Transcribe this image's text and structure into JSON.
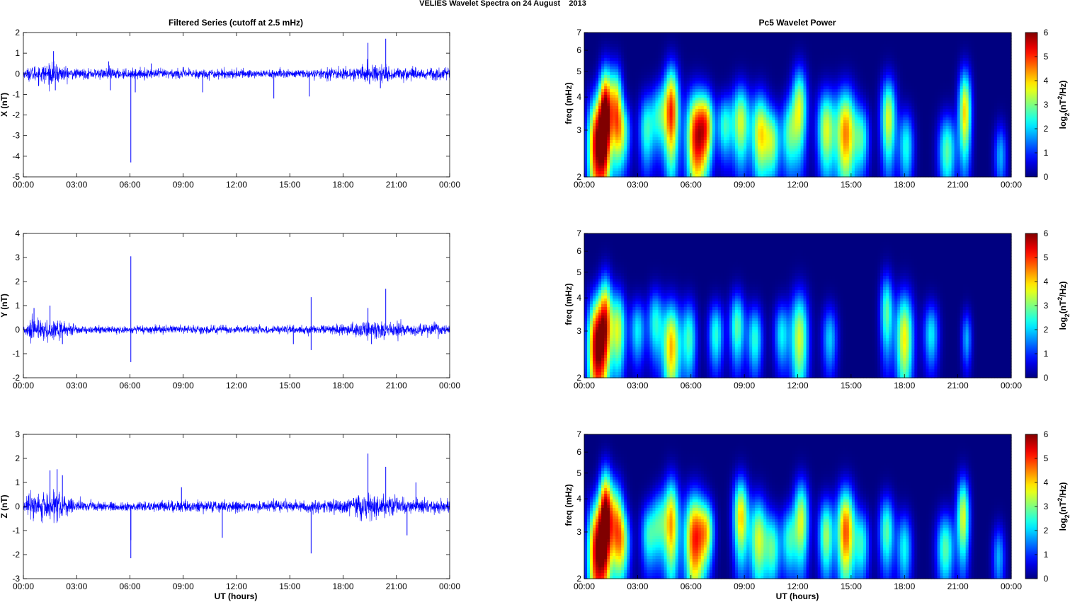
{
  "figure": {
    "title": "VELIES Wavelet Spectra on 24 August    2013",
    "left_title": "Filtered Series (cutoff at 2.5 mHz)",
    "right_title": "Pc5 Wavelet Power",
    "xlabel": "UT (hours)"
  },
  "chart_data": [
    {
      "type": "line",
      "title": "Filtered Series (cutoff at 2.5 mHz)",
      "ylabel": "X (nT)",
      "xlabel": "",
      "x_ticks": [
        "00:00",
        "03:00",
        "06:00",
        "09:00",
        "12:00",
        "15:00",
        "18:00",
        "21:00",
        "00:00"
      ],
      "xlim_hours": [
        0,
        24
      ],
      "ylim": [
        -5,
        2
      ],
      "y_ticks": [
        -5,
        -4,
        -3,
        -2,
        -1,
        0,
        1,
        2
      ],
      "noise_envelope": [
        [
          0,
          0.15
        ],
        [
          0.5,
          0.35
        ],
        [
          1.5,
          0.45
        ],
        [
          2,
          0.4
        ],
        [
          3,
          0.2
        ],
        [
          5,
          0.25
        ],
        [
          6,
          0.2
        ],
        [
          9,
          0.22
        ],
        [
          12,
          0.2
        ],
        [
          16,
          0.18
        ],
        [
          18,
          0.25
        ],
        [
          19.5,
          0.4
        ],
        [
          21,
          0.3
        ],
        [
          24,
          0.25
        ]
      ],
      "spikes": [
        [
          1.7,
          1.1
        ],
        [
          1.8,
          -0.8
        ],
        [
          4.8,
          0.6
        ],
        [
          4.9,
          -0.8
        ],
        [
          6.05,
          -4.3
        ],
        [
          6.3,
          -0.9
        ],
        [
          7.2,
          0.5
        ],
        [
          10.1,
          -0.9
        ],
        [
          14.1,
          -1.2
        ],
        [
          16.1,
          -1.1
        ],
        [
          19.4,
          1.5
        ],
        [
          20.4,
          1.7
        ],
        [
          20.1,
          -0.7
        ]
      ],
      "color": "#0000ff"
    },
    {
      "type": "line",
      "title": "",
      "ylabel": "Y (nT)",
      "xlabel": "",
      "x_ticks": [
        "00:00",
        "03:00",
        "06:00",
        "09:00",
        "12:00",
        "15:00",
        "18:00",
        "21:00",
        "00:00"
      ],
      "xlim_hours": [
        0,
        24
      ],
      "ylim": [
        -2,
        4
      ],
      "y_ticks": [
        -2,
        -1,
        0,
        1,
        2,
        3,
        4
      ],
      "noise_envelope": [
        [
          0,
          0.15
        ],
        [
          0.5,
          0.4
        ],
        [
          1.5,
          0.45
        ],
        [
          2,
          0.35
        ],
        [
          3,
          0.15
        ],
        [
          6,
          0.12
        ],
        [
          9,
          0.15
        ],
        [
          12,
          0.15
        ],
        [
          16,
          0.15
        ],
        [
          18,
          0.2
        ],
        [
          19.5,
          0.35
        ],
        [
          21,
          0.25
        ],
        [
          24,
          0.2
        ]
      ],
      "spikes": [
        [
          0.6,
          0.9
        ],
        [
          1.5,
          1.0
        ],
        [
          2.2,
          -0.6
        ],
        [
          6.05,
          3.05
        ],
        [
          6.05,
          -1.35
        ],
        [
          15.2,
          -0.6
        ],
        [
          16.2,
          1.35
        ],
        [
          16.2,
          -0.85
        ],
        [
          19.4,
          0.9
        ],
        [
          20.4,
          1.7
        ],
        [
          19.6,
          -0.6
        ]
      ],
      "color": "#0000ff"
    },
    {
      "type": "line",
      "title": "",
      "ylabel": "Z (nT)",
      "xlabel": "UT (hours)",
      "x_ticks": [
        "00:00",
        "03:00",
        "06:00",
        "09:00",
        "12:00",
        "15:00",
        "18:00",
        "21:00",
        "00:00"
      ],
      "xlim_hours": [
        0,
        24
      ],
      "ylim": [
        -3,
        3
      ],
      "y_ticks": [
        -3,
        -2,
        -1,
        0,
        1,
        2,
        3
      ],
      "noise_envelope": [
        [
          0,
          0.2
        ],
        [
          0.5,
          0.5
        ],
        [
          1.5,
          0.6
        ],
        [
          2,
          0.5
        ],
        [
          3,
          0.2
        ],
        [
          6,
          0.15
        ],
        [
          9,
          0.2
        ],
        [
          12,
          0.2
        ],
        [
          16,
          0.2
        ],
        [
          18,
          0.3
        ],
        [
          19.5,
          0.5
        ],
        [
          21,
          0.3
        ],
        [
          24,
          0.25
        ]
      ],
      "spikes": [
        [
          1.5,
          1.5
        ],
        [
          1.9,
          1.55
        ],
        [
          2.2,
          1.3
        ],
        [
          6.05,
          -2.15
        ],
        [
          6.05,
          -1.4
        ],
        [
          8.9,
          0.8
        ],
        [
          11.2,
          -1.3
        ],
        [
          16.2,
          -1.95
        ],
        [
          19.4,
          2.2
        ],
        [
          20.4,
          1.65
        ],
        [
          21.6,
          -1.2
        ],
        [
          22.1,
          1.0
        ]
      ],
      "color": "#0000ff"
    },
    {
      "type": "heatmap",
      "title": "Pc5 Wavelet Power",
      "ylabel": "freq (mHz)",
      "yscale": "log",
      "ylim": [
        2,
        7
      ],
      "y_ticks": [
        2,
        3,
        4,
        5,
        6,
        7
      ],
      "xlim_hours": [
        0,
        24
      ],
      "colorbar": {
        "ticks": [
          0,
          1,
          2,
          3,
          4,
          5,
          6
        ],
        "range": [
          0,
          6
        ]
      },
      "colorbar_label": "log",
      "colorbar_sub": "2",
      "colorbar_sup": "2",
      "blobs": [
        [
          0.7,
          2.6,
          0.35,
          0.9,
          5.5
        ],
        [
          1.2,
          3.4,
          0.25,
          1.1,
          5.8
        ],
        [
          1.8,
          3.6,
          0.25,
          1.0,
          4.0
        ],
        [
          2.2,
          2.9,
          0.3,
          0.6,
          2.5
        ],
        [
          3.5,
          3.0,
          0.3,
          0.7,
          2.5
        ],
        [
          4.2,
          3.4,
          0.3,
          0.7,
          2.3
        ],
        [
          4.9,
          3.5,
          0.3,
          1.1,
          5.0
        ],
        [
          6.3,
          2.8,
          0.4,
          0.9,
          5.2
        ],
        [
          6.9,
          3.1,
          0.3,
          0.7,
          3.2
        ],
        [
          7.9,
          3.1,
          0.3,
          0.6,
          2.5
        ],
        [
          8.8,
          3.2,
          0.35,
          0.8,
          3.5
        ],
        [
          9.9,
          2.9,
          0.35,
          0.8,
          3.8
        ],
        [
          10.6,
          2.7,
          0.3,
          0.6,
          2.8
        ],
        [
          11.5,
          2.9,
          0.3,
          0.7,
          2.5
        ],
        [
          12.1,
          3.6,
          0.3,
          1.0,
          3.5
        ],
        [
          13.6,
          3.0,
          0.35,
          0.8,
          3.5
        ],
        [
          14.7,
          2.9,
          0.4,
          0.9,
          4.5
        ],
        [
          15.6,
          2.8,
          0.3,
          0.6,
          2.4
        ],
        [
          17.1,
          3.3,
          0.3,
          0.9,
          3.6
        ],
        [
          18.1,
          2.6,
          0.3,
          0.6,
          2.4
        ],
        [
          20.4,
          2.5,
          0.35,
          0.6,
          2.8
        ],
        [
          21.4,
          3.5,
          0.25,
          1.0,
          4.0
        ],
        [
          23.4,
          2.4,
          0.25,
          0.5,
          1.8
        ]
      ]
    },
    {
      "type": "heatmap",
      "title": "",
      "ylabel": "freq (mHz)",
      "yscale": "log",
      "ylim": [
        2,
        7
      ],
      "y_ticks": [
        2,
        3,
        4,
        5,
        6,
        7
      ],
      "xlim_hours": [
        0,
        24
      ],
      "colorbar": {
        "ticks": [
          0,
          1,
          2,
          3,
          4,
          5,
          6
        ],
        "range": [
          0,
          6
        ]
      },
      "colorbar_label": "log",
      "colorbar_sub": "2",
      "colorbar_sup": "2",
      "blobs": [
        [
          0.7,
          2.6,
          0.35,
          0.9,
          5.8
        ],
        [
          1.2,
          3.3,
          0.25,
          1.0,
          4.0
        ],
        [
          1.9,
          3.0,
          0.3,
          0.8,
          3.5
        ],
        [
          3.0,
          3.0,
          0.3,
          0.6,
          2.2
        ],
        [
          4.0,
          3.2,
          0.3,
          0.7,
          2.4
        ],
        [
          4.9,
          2.6,
          0.35,
          0.8,
          4.2
        ],
        [
          5.9,
          2.8,
          0.3,
          0.7,
          2.6
        ],
        [
          7.4,
          2.9,
          0.3,
          0.6,
          2.5
        ],
        [
          8.6,
          3.1,
          0.3,
          0.7,
          2.8
        ],
        [
          9.6,
          2.8,
          0.3,
          0.6,
          2.5
        ],
        [
          11.1,
          2.9,
          0.3,
          0.6,
          2.2
        ],
        [
          12.1,
          2.8,
          0.35,
          0.9,
          3.5
        ],
        [
          13.8,
          2.8,
          0.3,
          0.6,
          2.0
        ],
        [
          17.0,
          3.5,
          0.25,
          0.9,
          2.8
        ],
        [
          18.0,
          2.8,
          0.35,
          0.9,
          3.8
        ],
        [
          19.5,
          2.9,
          0.3,
          0.6,
          2.2
        ],
        [
          21.5,
          2.8,
          0.2,
          0.5,
          1.8
        ]
      ]
    },
    {
      "type": "heatmap",
      "title": "",
      "ylabel": "freq (mHz)",
      "yscale": "log",
      "ylim": [
        2,
        7
      ],
      "y_ticks": [
        2,
        3,
        4,
        5,
        6,
        7
      ],
      "xlim_hours": [
        0,
        24
      ],
      "colorbar": {
        "ticks": [
          0,
          1,
          2,
          3,
          4,
          5,
          6
        ],
        "range": [
          0,
          6
        ]
      },
      "colorbar_label": "log",
      "colorbar_sub": "2",
      "colorbar_sup": "2",
      "blobs": [
        [
          0.7,
          2.5,
          0.35,
          0.9,
          5.5
        ],
        [
          1.2,
          3.4,
          0.25,
          1.1,
          5.5
        ],
        [
          1.8,
          3.2,
          0.3,
          0.9,
          3.8
        ],
        [
          2.2,
          2.7,
          0.3,
          0.6,
          2.5
        ],
        [
          3.6,
          2.9,
          0.3,
          0.6,
          2.3
        ],
        [
          4.2,
          3.2,
          0.3,
          0.7,
          2.3
        ],
        [
          4.9,
          3.2,
          0.3,
          1.0,
          4.2
        ],
        [
          6.2,
          2.8,
          0.4,
          0.9,
          5.0
        ],
        [
          6.9,
          3.0,
          0.3,
          0.6,
          3.0
        ],
        [
          8.8,
          3.4,
          0.3,
          0.9,
          4.0
        ],
        [
          9.8,
          2.8,
          0.35,
          0.8,
          3.5
        ],
        [
          10.6,
          2.6,
          0.3,
          0.6,
          2.6
        ],
        [
          11.5,
          2.8,
          0.3,
          0.6,
          2.4
        ],
        [
          12.2,
          3.3,
          0.3,
          0.9,
          3.5
        ],
        [
          13.6,
          2.9,
          0.3,
          0.7,
          3.2
        ],
        [
          14.7,
          3.0,
          0.35,
          0.9,
          4.8
        ],
        [
          15.6,
          2.7,
          0.3,
          0.6,
          2.4
        ],
        [
          17.0,
          3.0,
          0.3,
          0.7,
          2.8
        ],
        [
          18.0,
          2.6,
          0.3,
          0.6,
          2.3
        ],
        [
          20.3,
          2.6,
          0.35,
          0.6,
          2.8
        ],
        [
          21.3,
          3.4,
          0.25,
          0.9,
          3.6
        ],
        [
          23.3,
          2.4,
          0.25,
          0.5,
          1.8
        ]
      ]
    }
  ]
}
